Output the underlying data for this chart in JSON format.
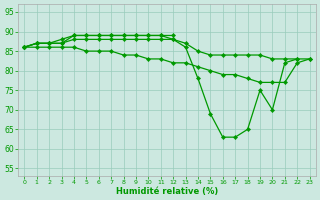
{
  "xlabel": "Humidité relative (%)",
  "xlim": [
    -0.5,
    23.5
  ],
  "ylim": [
    53,
    97
  ],
  "yticks": [
    55,
    60,
    65,
    70,
    75,
    80,
    85,
    90,
    95
  ],
  "xticks": [
    0,
    1,
    2,
    3,
    4,
    5,
    6,
    7,
    8,
    9,
    10,
    11,
    12,
    13,
    14,
    15,
    16,
    17,
    18,
    19,
    20,
    21,
    22,
    23
  ],
  "bg_color": "#cce8e0",
  "grid_color": "#99ccbb",
  "line_color": "#009900",
  "lines": [
    {
      "x": [
        0,
        1,
        2,
        3,
        4,
        5,
        6,
        7,
        8,
        9,
        10,
        11,
        12,
        13,
        14,
        15,
        16,
        17,
        18,
        19,
        20,
        21,
        22
      ],
      "y": [
        86,
        87,
        87,
        87,
        89,
        89,
        89,
        89,
        89,
        89,
        89,
        89,
        88,
        86,
        78,
        69,
        63,
        63,
        65,
        75,
        70,
        82,
        83
      ]
    },
    {
      "x": [
        0,
        1,
        2,
        3,
        4,
        5,
        6,
        7,
        8,
        9,
        10,
        11,
        12,
        13,
        14,
        15,
        16,
        17,
        18,
        19,
        20,
        21,
        22,
        23
      ],
      "y": [
        86,
        87,
        87,
        87,
        88,
        88,
        88,
        88,
        88,
        88,
        88,
        88,
        88,
        87,
        85,
        84,
        84,
        84,
        84,
        84,
        83,
        83,
        83,
        83
      ]
    },
    {
      "x": [
        0,
        1,
        2,
        3,
        4,
        5,
        6,
        7,
        8,
        9,
        10,
        11,
        12,
        13,
        14,
        15,
        16,
        17,
        18,
        19,
        20,
        21,
        22,
        23
      ],
      "y": [
        86,
        86,
        86,
        86,
        86,
        85,
        85,
        85,
        84,
        84,
        83,
        83,
        82,
        82,
        81,
        80,
        79,
        79,
        78,
        77,
        77,
        77,
        82,
        83
      ]
    },
    {
      "x": [
        0,
        1,
        2,
        3,
        4,
        5,
        6,
        7,
        8,
        9,
        10,
        11,
        12
      ],
      "y": [
        86,
        87,
        87,
        88,
        89,
        89,
        89,
        89,
        89,
        89,
        89,
        89,
        89
      ]
    }
  ]
}
